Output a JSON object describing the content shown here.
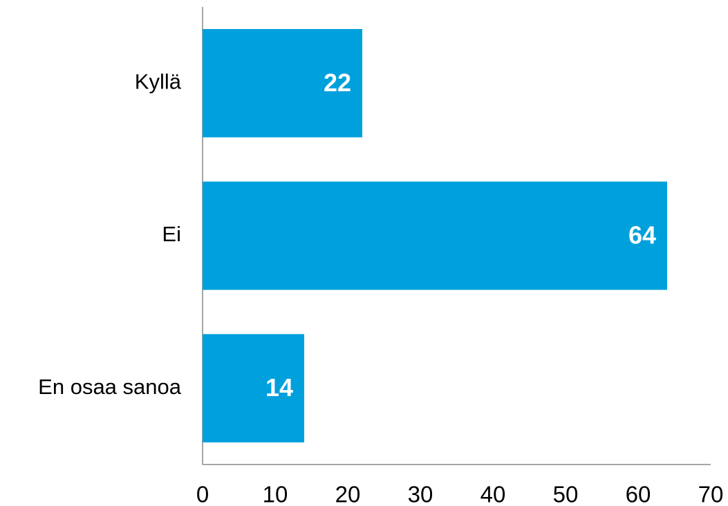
{
  "chart_data": {
    "type": "bar",
    "orientation": "horizontal",
    "categories": [
      "Kyllä",
      "Ei",
      "En osaa sanoa"
    ],
    "values": [
      22,
      64,
      14
    ],
    "color": "#00a0dc",
    "xlim": [
      0,
      70
    ],
    "xticks": [
      0,
      10,
      20,
      30,
      40,
      50,
      60,
      70
    ],
    "grid": false
  }
}
